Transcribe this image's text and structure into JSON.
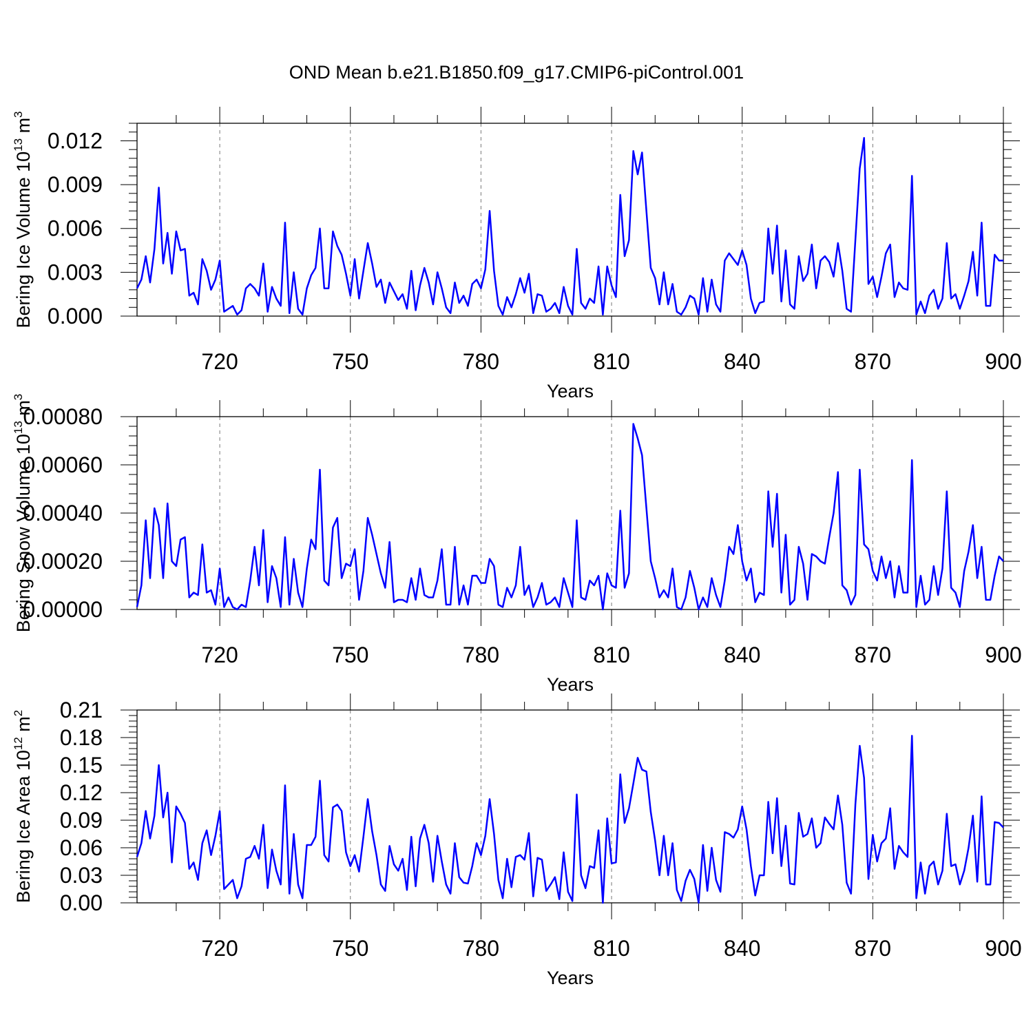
{
  "figure_title": "OND Mean b.e21.B1850.f09_g17.CMIP6-piControl.001",
  "line_color": "#0000ff",
  "chart_data": [
    {
      "type": "line",
      "title": "OND Mean b.e21.B1850.f09_g17.CMIP6-piControl.001",
      "ylabel": "Bering Ice Volume 10",
      "ylabel_exp": "13",
      "ylabel_unit": " m",
      "ylabel_unit_exp": "3",
      "xlabel": "Years",
      "xlim": [
        701,
        900
      ],
      "ylim": [
        0,
        0.0132
      ],
      "x_ticks": [
        720,
        750,
        780,
        810,
        840,
        870,
        900
      ],
      "x_tick_labels": [
        "720",
        "750",
        "780",
        "810",
        "840",
        "870",
        "900"
      ],
      "y_ticks": [
        0,
        0.003,
        0.006,
        0.009,
        0.012
      ],
      "y_tick_labels": [
        "0.000",
        "0.003",
        "0.006",
        "0.009",
        "0.012"
      ],
      "grid": "vertical dashed at major x ticks",
      "x_start": 701,
      "values": [
        0.0019,
        0.0025,
        0.0041,
        0.0023,
        0.0046,
        0.0088,
        0.0036,
        0.0057,
        0.0029,
        0.0058,
        0.0045,
        0.0046,
        0.0014,
        0.0016,
        0.0008,
        0.0039,
        0.0031,
        0.0018,
        0.0025,
        0.0038,
        0.0003,
        0.0005,
        0.0007,
        0.0001,
        0.0004,
        0.0019,
        0.0022,
        0.0019,
        0.0014,
        0.0036,
        0.0003,
        0.002,
        0.0012,
        0.0007,
        0.0064,
        0.0002,
        0.003,
        0.0005,
        0.0001,
        0.0019,
        0.0028,
        0.0033,
        0.006,
        0.0019,
        0.0019,
        0.0058,
        0.0048,
        0.0042,
        0.0029,
        0.0014,
        0.0039,
        0.0012,
        0.0031,
        0.005,
        0.0036,
        0.002,
        0.0025,
        0.0009,
        0.0023,
        0.0017,
        0.0011,
        0.0015,
        0.0005,
        0.0031,
        0.0004,
        0.0021,
        0.0033,
        0.0023,
        0.0008,
        0.003,
        0.0019,
        0.0006,
        0.0002,
        0.0023,
        0.0009,
        0.0014,
        0.0007,
        0.0022,
        0.0025,
        0.0019,
        0.0032,
        0.0072,
        0.0031,
        0.0007,
        0.0001,
        0.0013,
        0.0006,
        0.0015,
        0.0026,
        0.0016,
        0.0029,
        0.0002,
        0.0015,
        0.0014,
        0.0003,
        0.0005,
        0.0009,
        0.0002,
        0.002,
        0.0007,
        0.0001,
        0.0046,
        0.0009,
        0.0005,
        0.0012,
        0.0009,
        0.0034,
        0.0001,
        0.0034,
        0.0021,
        0.0013,
        0.0083,
        0.0041,
        0.0052,
        0.0113,
        0.0097,
        0.0112,
        0.0072,
        0.0033,
        0.0026,
        0.0008,
        0.003,
        0.0008,
        0.0022,
        0.0003,
        0.0001,
        0.0006,
        0.0014,
        0.0012,
        0.0001,
        0.0026,
        0.0003,
        0.0025,
        0.0008,
        0.0003,
        0.0038,
        0.0043,
        0.0039,
        0.0035,
        0.0045,
        0.0035,
        0.0012,
        0.0002,
        0.0009,
        0.001,
        0.006,
        0.0029,
        0.0062,
        0.001,
        0.0045,
        0.0008,
        0.0005,
        0.0041,
        0.0024,
        0.0029,
        0.0049,
        0.0019,
        0.0038,
        0.0041,
        0.0037,
        0.0027,
        0.005,
        0.0031,
        0.0005,
        0.0003,
        0.0052,
        0.0101,
        0.0122,
        0.0022,
        0.0027,
        0.0013,
        0.0027,
        0.0043,
        0.0049,
        0.0013,
        0.0023,
        0.0019,
        0.0018,
        0.0096,
        0.0001,
        0.001,
        0.0002,
        0.0014,
        0.0018,
        0.0005,
        0.0012,
        0.005,
        0.0012,
        0.0015,
        0.0005,
        0.0014,
        0.0024,
        0.0044,
        0.0014,
        0.0064,
        0.0007,
        0.0007,
        0.0042,
        0.0038,
        0.0038
      ]
    },
    {
      "type": "line",
      "ylabel": "Bering Snow Volume 10",
      "ylabel_exp": "13",
      "ylabel_unit": " m",
      "ylabel_unit_exp": "3",
      "xlabel": "Years",
      "xlim": [
        701,
        900
      ],
      "ylim": [
        0,
        0.0008
      ],
      "x_ticks": [
        720,
        750,
        780,
        810,
        840,
        870,
        900
      ],
      "x_tick_labels": [
        "720",
        "750",
        "780",
        "810",
        "840",
        "870",
        "900"
      ],
      "y_ticks": [
        0,
        0.0002,
        0.0004,
        0.0006,
        0.0008
      ],
      "y_tick_labels": [
        "0.00000",
        "0.00020",
        "0.00040",
        "0.00060",
        "0.00080"
      ],
      "grid": "vertical dashed at major x ticks",
      "x_start": 701,
      "values": [
        1e-05,
        0.0001,
        0.00037,
        0.00013,
        0.00042,
        0.00035,
        0.00013,
        0.00044,
        0.0002,
        0.00018,
        0.00029,
        0.0003,
        5e-05,
        7e-05,
        6e-05,
        0.00027,
        7e-05,
        8e-05,
        2e-05,
        0.00017,
        1e-05,
        5e-05,
        1e-05,
        0.0,
        2e-05,
        1e-05,
        0.00012,
        0.00026,
        0.0001,
        0.00033,
        3e-05,
        0.00018,
        0.00013,
        1e-05,
        0.0003,
        2e-05,
        0.00021,
        7e-05,
        1e-05,
        0.00017,
        0.00029,
        0.00025,
        0.00058,
        0.00012,
        0.0001,
        0.00034,
        0.00038,
        0.00013,
        0.00019,
        0.00018,
        0.00025,
        4e-05,
        0.00016,
        0.00038,
        0.00031,
        0.00023,
        0.00015,
        9e-05,
        0.00028,
        3e-05,
        4e-05,
        4e-05,
        3e-05,
        0.00013,
        4e-05,
        0.00017,
        6e-05,
        5e-05,
        5e-05,
        0.00012,
        0.00025,
        2e-05,
        2e-05,
        0.00026,
        2e-05,
        0.0001,
        2e-05,
        0.00014,
        0.00014,
        0.00011,
        0.00011,
        0.00021,
        0.00018,
        2e-05,
        1e-05,
        9e-05,
        5e-05,
        0.0001,
        0.00026,
        6e-05,
        0.0001,
        1e-05,
        5e-05,
        0.00011,
        2e-05,
        3e-05,
        5e-05,
        1e-05,
        0.00013,
        7e-05,
        1e-05,
        0.00037,
        5e-05,
        4e-05,
        0.00012,
        0.0001,
        0.00014,
        0.0,
        0.00015,
        0.0001,
        9e-05,
        0.00041,
        9e-05,
        0.00015,
        0.00077,
        0.00071,
        0.00064,
        0.00042,
        0.0002,
        0.00013,
        5e-05,
        8e-05,
        5e-05,
        0.00017,
        1e-05,
        0.0,
        5e-05,
        0.00016,
        9e-05,
        0.0,
        5e-05,
        1e-05,
        0.00013,
        6e-05,
        1e-05,
        0.00012,
        0.00026,
        0.00023,
        0.00035,
        0.0002,
        0.00012,
        0.00017,
        3e-05,
        7e-05,
        6e-05,
        0.00049,
        0.00026,
        0.00048,
        7e-05,
        0.00031,
        2e-05,
        4e-05,
        0.00026,
        0.00019,
        4e-05,
        0.00023,
        0.00022,
        0.0002,
        0.00019,
        0.0003,
        0.0004,
        0.00057,
        0.0001,
        8e-05,
        2e-05,
        6e-05,
        0.00058,
        0.00027,
        0.00025,
        0.00016,
        0.00012,
        0.00022,
        0.00013,
        0.0002,
        5e-05,
        0.00018,
        7e-05,
        7e-05,
        0.00062,
        1e-05,
        0.00014,
        2e-05,
        4e-05,
        0.00018,
        6e-05,
        0.00017,
        0.00049,
        9e-05,
        7e-05,
        1e-05,
        0.00016,
        0.00024,
        0.00035,
        0.00013,
        0.00026,
        4e-05,
        4e-05,
        0.00014,
        0.00022,
        0.0002
      ]
    },
    {
      "type": "line",
      "ylabel": "Bering Ice Area 10",
      "ylabel_exp": "12",
      "ylabel_unit": " m",
      "ylabel_unit_exp": "2",
      "xlabel": "Years",
      "xlim": [
        701,
        900
      ],
      "ylim": [
        0,
        0.21
      ],
      "x_ticks": [
        720,
        750,
        780,
        810,
        840,
        870,
        900
      ],
      "x_tick_labels": [
        "720",
        "750",
        "780",
        "810",
        "840",
        "870",
        "900"
      ],
      "y_ticks": [
        0,
        0.03,
        0.06,
        0.09,
        0.12,
        0.15,
        0.18,
        0.21
      ],
      "y_tick_labels": [
        "0.00",
        "0.03",
        "0.06",
        "0.09",
        "0.12",
        "0.15",
        "0.18",
        "0.21"
      ],
      "grid": "vertical dashed at major x ticks",
      "x_start": 701,
      "values": [
        0.05,
        0.065,
        0.1,
        0.07,
        0.095,
        0.15,
        0.093,
        0.12,
        0.044,
        0.105,
        0.097,
        0.087,
        0.037,
        0.044,
        0.025,
        0.065,
        0.079,
        0.052,
        0.073,
        0.1,
        0.015,
        0.02,
        0.025,
        0.005,
        0.018,
        0.048,
        0.05,
        0.062,
        0.048,
        0.085,
        0.016,
        0.058,
        0.035,
        0.02,
        0.128,
        0.01,
        0.075,
        0.02,
        0.005,
        0.063,
        0.063,
        0.072,
        0.133,
        0.052,
        0.045,
        0.104,
        0.107,
        0.1,
        0.055,
        0.04,
        0.052,
        0.034,
        0.072,
        0.113,
        0.078,
        0.052,
        0.02,
        0.013,
        0.062,
        0.042,
        0.035,
        0.048,
        0.014,
        0.072,
        0.018,
        0.07,
        0.085,
        0.065,
        0.023,
        0.073,
        0.045,
        0.02,
        0.01,
        0.065,
        0.028,
        0.022,
        0.021,
        0.04,
        0.065,
        0.052,
        0.073,
        0.113,
        0.075,
        0.025,
        0.005,
        0.048,
        0.017,
        0.05,
        0.052,
        0.047,
        0.076,
        0.007,
        0.049,
        0.047,
        0.013,
        0.02,
        0.028,
        0.004,
        0.055,
        0.012,
        0.002,
        0.118,
        0.03,
        0.016,
        0.04,
        0.038,
        0.079,
        0.0,
        0.092,
        0.043,
        0.044,
        0.14,
        0.087,
        0.103,
        0.13,
        0.158,
        0.145,
        0.143,
        0.099,
        0.068,
        0.03,
        0.073,
        0.03,
        0.065,
        0.014,
        0.002,
        0.024,
        0.036,
        0.026,
        0.0,
        0.063,
        0.013,
        0.06,
        0.025,
        0.012,
        0.077,
        0.075,
        0.071,
        0.08,
        0.105,
        0.08,
        0.04,
        0.008,
        0.03,
        0.03,
        0.11,
        0.054,
        0.114,
        0.04,
        0.084,
        0.021,
        0.02,
        0.098,
        0.072,
        0.075,
        0.092,
        0.06,
        0.065,
        0.093,
        0.086,
        0.08,
        0.117,
        0.085,
        0.022,
        0.01,
        0.107,
        0.171,
        0.136,
        0.026,
        0.074,
        0.045,
        0.065,
        0.07,
        0.103,
        0.037,
        0.062,
        0.055,
        0.05,
        0.182,
        0.005,
        0.044,
        0.01,
        0.04,
        0.045,
        0.02,
        0.035,
        0.097,
        0.04,
        0.042,
        0.02,
        0.035,
        0.06,
        0.095,
        0.023,
        0.116,
        0.02,
        0.02,
        0.088,
        0.087,
        0.082
      ]
    }
  ]
}
